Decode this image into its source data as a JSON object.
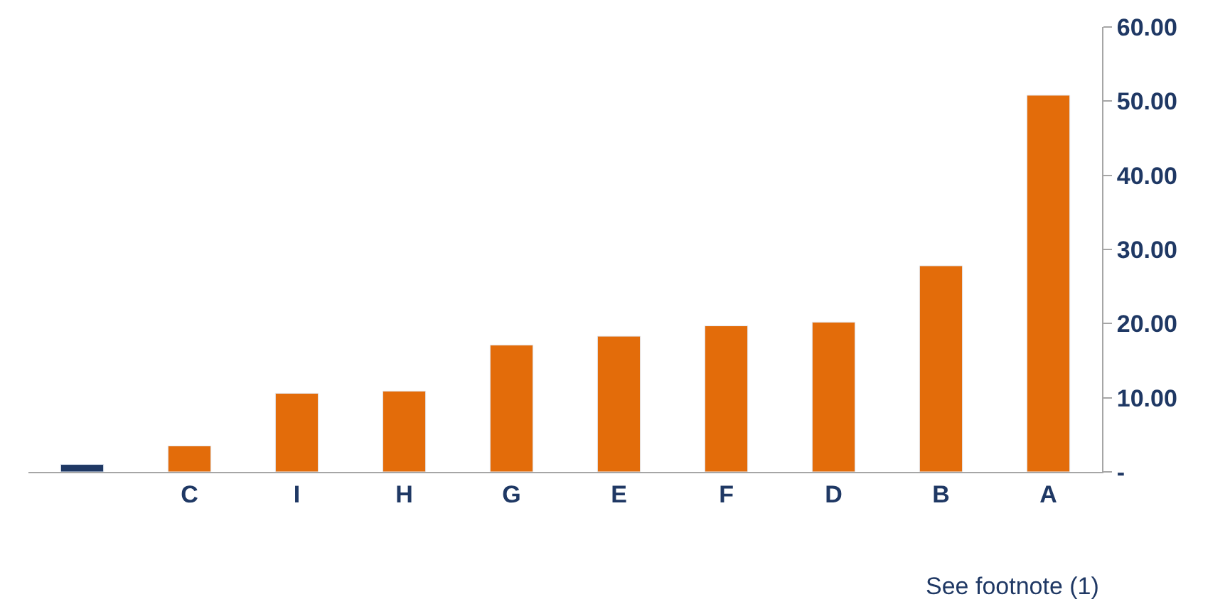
{
  "chart_data": {
    "type": "bar",
    "categories": [
      null,
      "C",
      "I",
      "H",
      "G",
      "E",
      "F",
      "D",
      "B",
      "A"
    ],
    "values": [
      1.0,
      3.5,
      10.6,
      10.9,
      17.1,
      18.3,
      19.7,
      20.2,
      27.8,
      50.8
    ],
    "colors": [
      "#1f3864",
      "#e36c0a",
      "#e36c0a",
      "#e36c0a",
      "#e36c0a",
      "#e36c0a",
      "#e36c0a",
      "#e36c0a",
      "#e36c0a",
      "#e36c0a"
    ],
    "ylim": [
      0,
      60
    ],
    "yticks": [
      {
        "value": 0,
        "label": "-"
      },
      {
        "value": 10,
        "label": "10.00"
      },
      {
        "value": 20,
        "label": "20.00"
      },
      {
        "value": 30,
        "label": "30.00"
      },
      {
        "value": 40,
        "label": "40.00"
      },
      {
        "value": 50,
        "label": "50.00"
      },
      {
        "value": 60,
        "label": "60.00"
      }
    ],
    "legend": false,
    "annotations": [
      "See footnote (1)"
    ]
  }
}
